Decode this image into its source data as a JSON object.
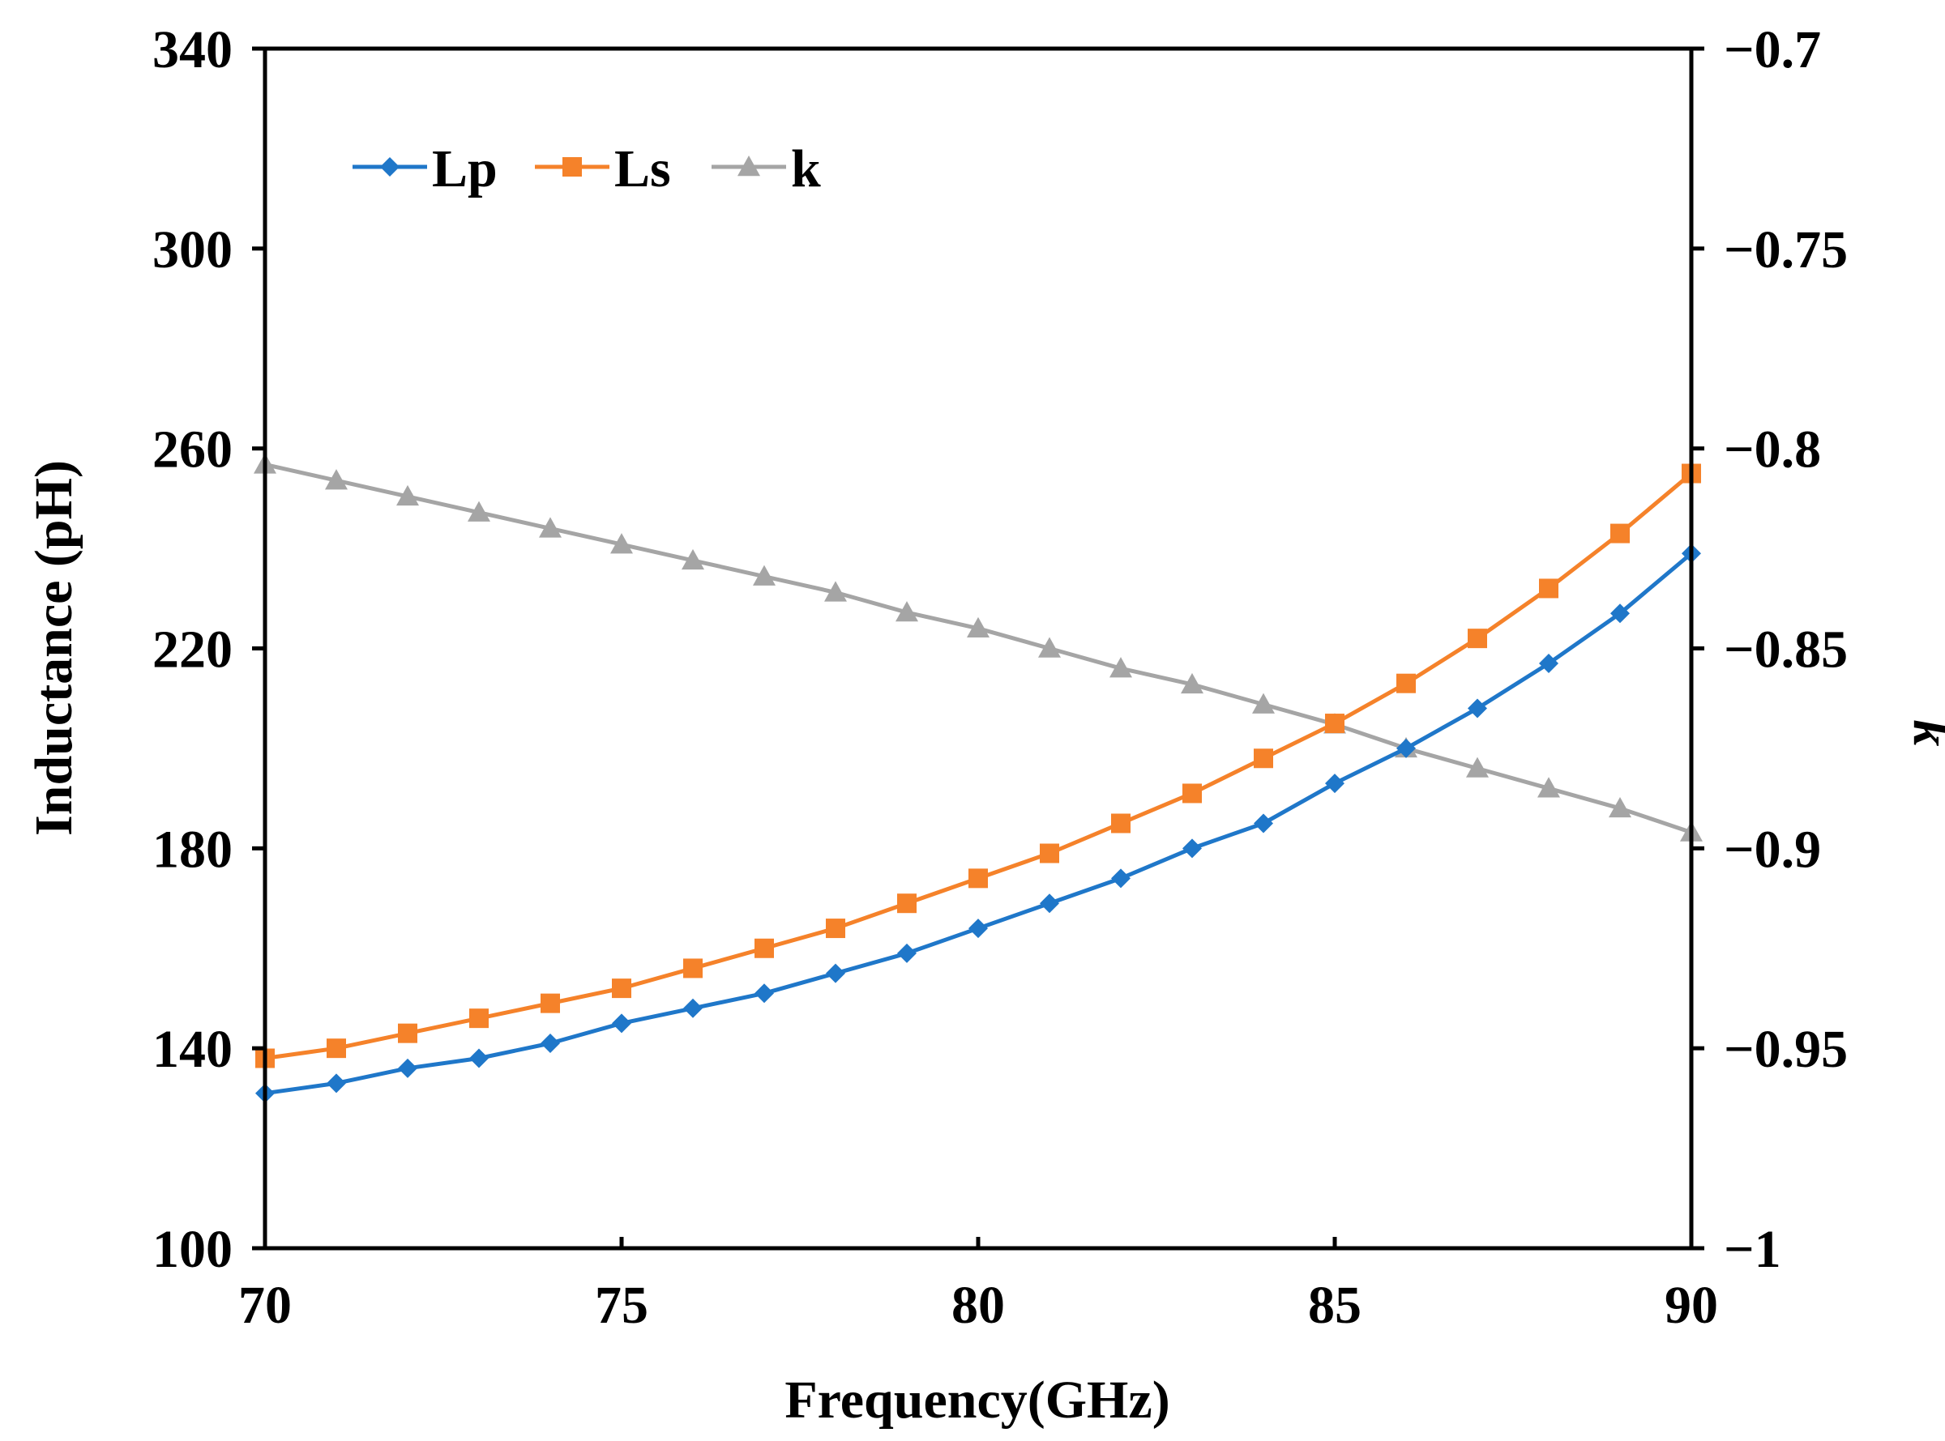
{
  "chart_data": {
    "type": "line",
    "title": "",
    "xlabel": "Frequency(GHz)",
    "ylabel": "Inductance (pH)",
    "y2label": "k",
    "xlim": [
      70,
      90
    ],
    "ylim": [
      100,
      340
    ],
    "y2lim": [
      -1,
      -0.7
    ],
    "xticks": [
      70,
      75,
      80,
      85,
      90
    ],
    "xtick_labels": [
      "70",
      "75",
      "80",
      "85",
      "90"
    ],
    "yticks": [
      100,
      140,
      180,
      220,
      260,
      300,
      340
    ],
    "ytick_labels": [
      "100",
      "140",
      "180",
      "220",
      "260",
      "300",
      "340"
    ],
    "y2ticks": [
      -1,
      -0.95,
      -0.9,
      -0.85,
      -0.8,
      -0.75,
      -0.7
    ],
    "y2tick_labels": [
      "−1",
      "−0.95",
      "−0.9",
      "−0.85",
      "−0.8",
      "−0.75",
      "−0.7"
    ],
    "grid": false,
    "legend_position": "top-left",
    "x": [
      70,
      71,
      72,
      73,
      74,
      75,
      76,
      77,
      78,
      79,
      80,
      81,
      82,
      83,
      84,
      85,
      86,
      87,
      88,
      89,
      90
    ],
    "series": [
      {
        "name": "Lp",
        "axis": "left",
        "color": "#1f77c9",
        "marker": "diamond",
        "values": [
          131,
          133,
          136,
          138,
          141,
          145,
          148,
          151,
          155,
          159,
          164,
          169,
          174,
          180,
          185,
          193,
          200,
          208,
          217,
          227,
          239
        ]
      },
      {
        "name": "Ls",
        "axis": "left",
        "color": "#f5822a",
        "marker": "square",
        "values": [
          138,
          140,
          143,
          146,
          149,
          152,
          156,
          160,
          164,
          169,
          174,
          179,
          185,
          191,
          198,
          205,
          213,
          222,
          232,
          243,
          255
        ]
      },
      {
        "name": "k",
        "axis": "right",
        "color": "#a5a5a5",
        "marker": "triangle",
        "values": [
          -0.804,
          -0.808,
          -0.812,
          -0.816,
          -0.82,
          -0.824,
          -0.828,
          -0.832,
          -0.836,
          -0.841,
          -0.845,
          -0.85,
          -0.855,
          -0.859,
          -0.864,
          -0.869,
          -0.875,
          -0.88,
          -0.885,
          -0.89,
          -0.896
        ]
      }
    ]
  }
}
